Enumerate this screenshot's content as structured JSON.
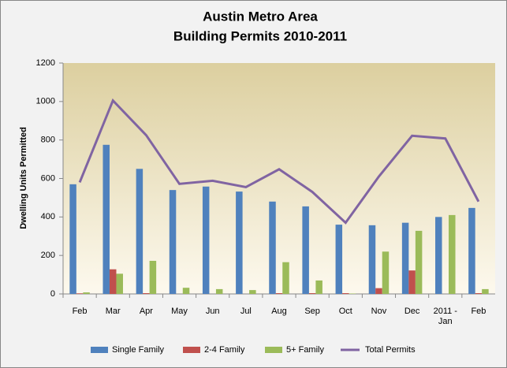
{
  "chart_data": {
    "type": "bar_line",
    "title": "Austin Metro Area",
    "subtitle": "Building Permits 2010-2011",
    "y_label": "Dwelling Units Permitted",
    "categories": [
      "Feb",
      "Mar",
      "Apr",
      "May",
      "Jun",
      "Jul",
      "Aug",
      "Sep",
      "Oct",
      "Nov",
      "Dec",
      "2011 - Jan",
      "Feb"
    ],
    "series": [
      {
        "name": "Single Family",
        "color": "#4f81bd",
        "type": "bar",
        "values": [
          570,
          775,
          650,
          540,
          558,
          532,
          480,
          455,
          360,
          357,
          370,
          400,
          447
        ]
      },
      {
        "name": "2-4 Family",
        "color": "#c0504d",
        "type": "bar",
        "values": [
          3,
          128,
          4,
          0,
          0,
          0,
          4,
          4,
          4,
          30,
          122,
          0,
          4
        ]
      },
      {
        "name": "5+ Family",
        "color": "#9bbb59",
        "type": "bar",
        "values": [
          8,
          105,
          172,
          32,
          25,
          20,
          165,
          70,
          2,
          220,
          328,
          410,
          25
        ]
      },
      {
        "name": "Total Permits",
        "color": "#8064a2",
        "type": "line",
        "values": [
          580,
          1005,
          825,
          572,
          588,
          555,
          648,
          530,
          370,
          610,
          822,
          808,
          480
        ]
      }
    ],
    "ylim": [
      0,
      1200
    ],
    "yticks": [
      0,
      200,
      400,
      600,
      800,
      1000,
      1200
    ],
    "grid": false,
    "legend": "bottom"
  }
}
